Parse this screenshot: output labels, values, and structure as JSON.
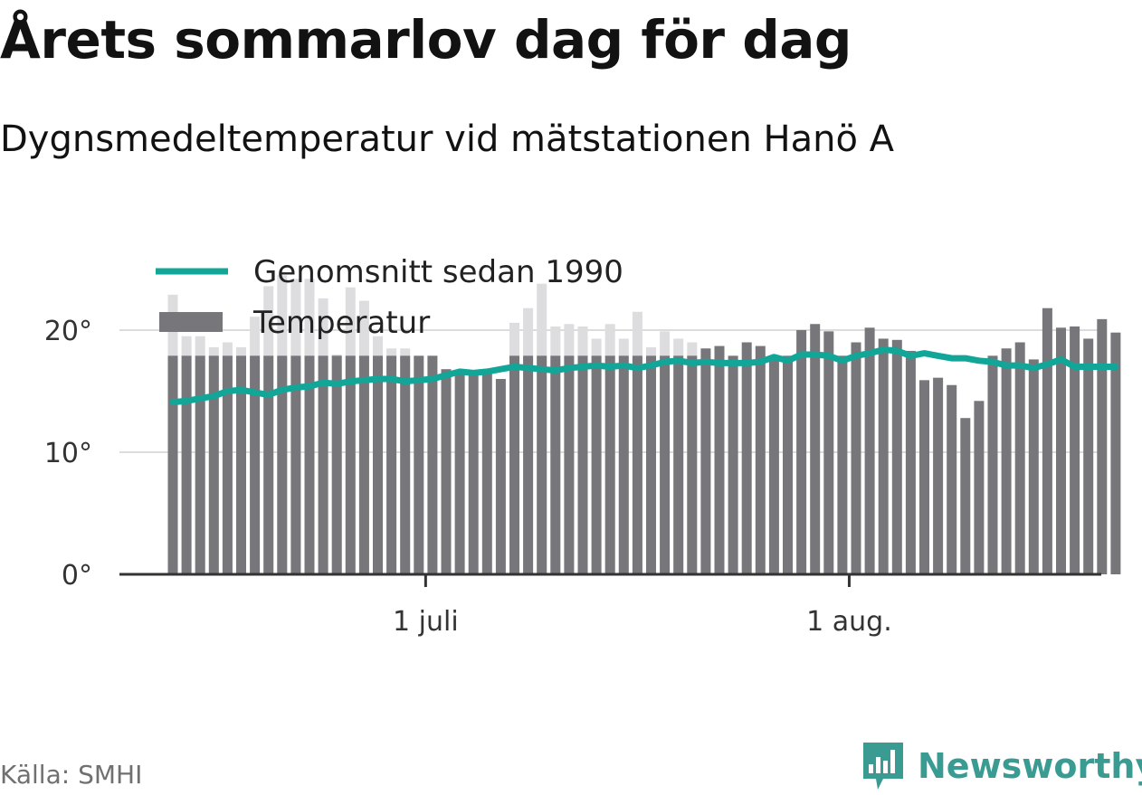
{
  "header": {
    "title": "Årets sommarlov dag för dag",
    "subtitle": "Dygnsmedeltemperatur vid mätstationen Hanö A"
  },
  "footer": {
    "source": "Källa: SMHI",
    "brand": "Newsworthy",
    "brand_icon": "bar-chart-speech-bubble-icon"
  },
  "colors": {
    "bar": "#77767b",
    "bar_prev_year": "#dddddf",
    "average_line": "#11a697",
    "axis": "#333333",
    "grid": "#dcdcdc",
    "brand": "#3a9b92"
  },
  "chart_data": {
    "type": "bar",
    "x_axis_ticks": [
      {
        "date": "2019-07-01",
        "label": "1 juli"
      },
      {
        "date": "2019-08-01",
        "label": "1 aug."
      }
    ],
    "y_axis_ticks": [
      {
        "value": 0,
        "label": "0°"
      },
      {
        "value": 10,
        "label": "10°"
      },
      {
        "value": 20,
        "label": "20°"
      }
    ],
    "ylim": [
      0,
      24
    ],
    "grid": true,
    "legend_position": "top-left",
    "legend": [
      {
        "label": "Genomsnitt sedan 1990",
        "kind": "line"
      },
      {
        "label": "Temperatur",
        "kind": "bar"
      }
    ],
    "dates": [
      "2019-06-12",
      "2019-06-13",
      "2019-06-14",
      "2019-06-15",
      "2019-06-16",
      "2019-06-17",
      "2019-06-18",
      "2019-06-19",
      "2019-06-20",
      "2019-06-21",
      "2019-06-22",
      "2019-06-23",
      "2019-06-24",
      "2019-06-25",
      "2019-06-26",
      "2019-06-27",
      "2019-06-28",
      "2019-06-29",
      "2019-06-30",
      "2019-07-01",
      "2019-07-02",
      "2019-07-03",
      "2019-07-04",
      "2019-07-05",
      "2019-07-06",
      "2019-07-07",
      "2019-07-08",
      "2019-07-09",
      "2019-07-10",
      "2019-07-11",
      "2019-07-12",
      "2019-07-13",
      "2019-07-14",
      "2019-07-15",
      "2019-07-16",
      "2019-07-17",
      "2019-07-18",
      "2019-07-19",
      "2019-07-20",
      "2019-07-21",
      "2019-07-22",
      "2019-07-23",
      "2019-07-24",
      "2019-07-25",
      "2019-07-26",
      "2019-07-27",
      "2019-07-28",
      "2019-07-29",
      "2019-07-30",
      "2019-07-31",
      "2019-08-01",
      "2019-08-02",
      "2019-08-03",
      "2019-08-04",
      "2019-08-05",
      "2019-08-06",
      "2019-08-07",
      "2019-08-08",
      "2019-08-09",
      "2019-08-10",
      "2019-08-11",
      "2019-08-12",
      "2019-08-13",
      "2019-08-14",
      "2019-08-15",
      "2019-08-16",
      "2019-08-17",
      "2019-08-18",
      "2019-08-19",
      "2019-08-20",
      "2019-08-21",
      "2019-08-22"
    ],
    "series": [
      {
        "name": "Temperatur",
        "values": [
          17.9,
          17.9,
          17.9,
          17.9,
          17.9,
          17.9,
          17.9,
          17.9,
          17.9,
          17.9,
          17.9,
          17.9,
          17.9,
          17.9,
          17.9,
          17.9,
          17.9,
          17.9,
          17.9,
          17.9,
          16.8,
          16.6,
          16.5,
          16.6,
          16.0,
          17.9,
          17.9,
          17.9,
          17.9,
          17.9,
          17.9,
          17.9,
          17.9,
          17.9,
          17.9,
          17.9,
          17.9,
          17.9,
          17.9,
          18.5,
          18.7,
          17.9,
          19.0,
          18.7,
          17.9,
          17.9,
          20.0,
          20.5,
          19.9,
          17.9,
          19.0,
          20.2,
          19.3,
          19.2,
          18.3,
          15.9,
          16.1,
          15.5,
          12.8,
          14.2,
          17.9,
          18.5,
          19.0,
          17.6,
          21.8,
          20.2,
          20.3,
          19.3,
          20.9,
          19.8,
          null,
          null
        ]
      },
      {
        "name": "",
        "values": [
          22.9,
          19.5,
          19.5,
          18.6,
          19.0,
          18.6,
          21.1,
          23.6,
          24.5,
          24.2,
          24.2,
          22.6,
          18.0,
          23.5,
          22.4,
          19.5,
          18.5,
          18.5,
          null,
          null,
          null,
          null,
          null,
          null,
          null,
          20.6,
          21.8,
          23.8,
          20.3,
          20.5,
          20.3,
          19.3,
          20.5,
          19.3,
          21.5,
          18.6,
          19.9,
          19.3,
          19.0,
          null,
          null,
          null,
          null,
          null,
          null,
          null,
          null,
          null,
          null,
          null,
          null,
          null,
          null,
          null,
          null,
          null,
          null,
          null,
          null,
          null,
          null,
          null,
          null,
          null,
          null,
          null,
          null,
          null,
          null,
          null,
          null,
          null
        ]
      },
      {
        "name": "Genomsnitt sedan 1990",
        "values": [
          14.1,
          14.2,
          14.4,
          14.6,
          15.0,
          15.1,
          14.9,
          14.7,
          15.1,
          15.3,
          15.4,
          15.7,
          15.6,
          15.8,
          15.9,
          16.0,
          16.0,
          15.8,
          15.9,
          16.0,
          16.3,
          16.6,
          16.5,
          16.6,
          16.8,
          17.0,
          16.9,
          16.8,
          16.7,
          16.9,
          17.0,
          17.1,
          17.0,
          17.1,
          16.9,
          17.1,
          17.4,
          17.5,
          17.3,
          17.4,
          17.3,
          17.3,
          17.3,
          17.4,
          17.8,
          17.5,
          18.0,
          18.0,
          17.9,
          17.5,
          17.9,
          18.1,
          18.4,
          18.3,
          17.9,
          18.1,
          17.9,
          17.7,
          17.7,
          17.5,
          17.4,
          17.1,
          17.1,
          16.9,
          17.2,
          17.6,
          17.0,
          17.0,
          17.0,
          17.0,
          null,
          null
        ]
      }
    ]
  }
}
